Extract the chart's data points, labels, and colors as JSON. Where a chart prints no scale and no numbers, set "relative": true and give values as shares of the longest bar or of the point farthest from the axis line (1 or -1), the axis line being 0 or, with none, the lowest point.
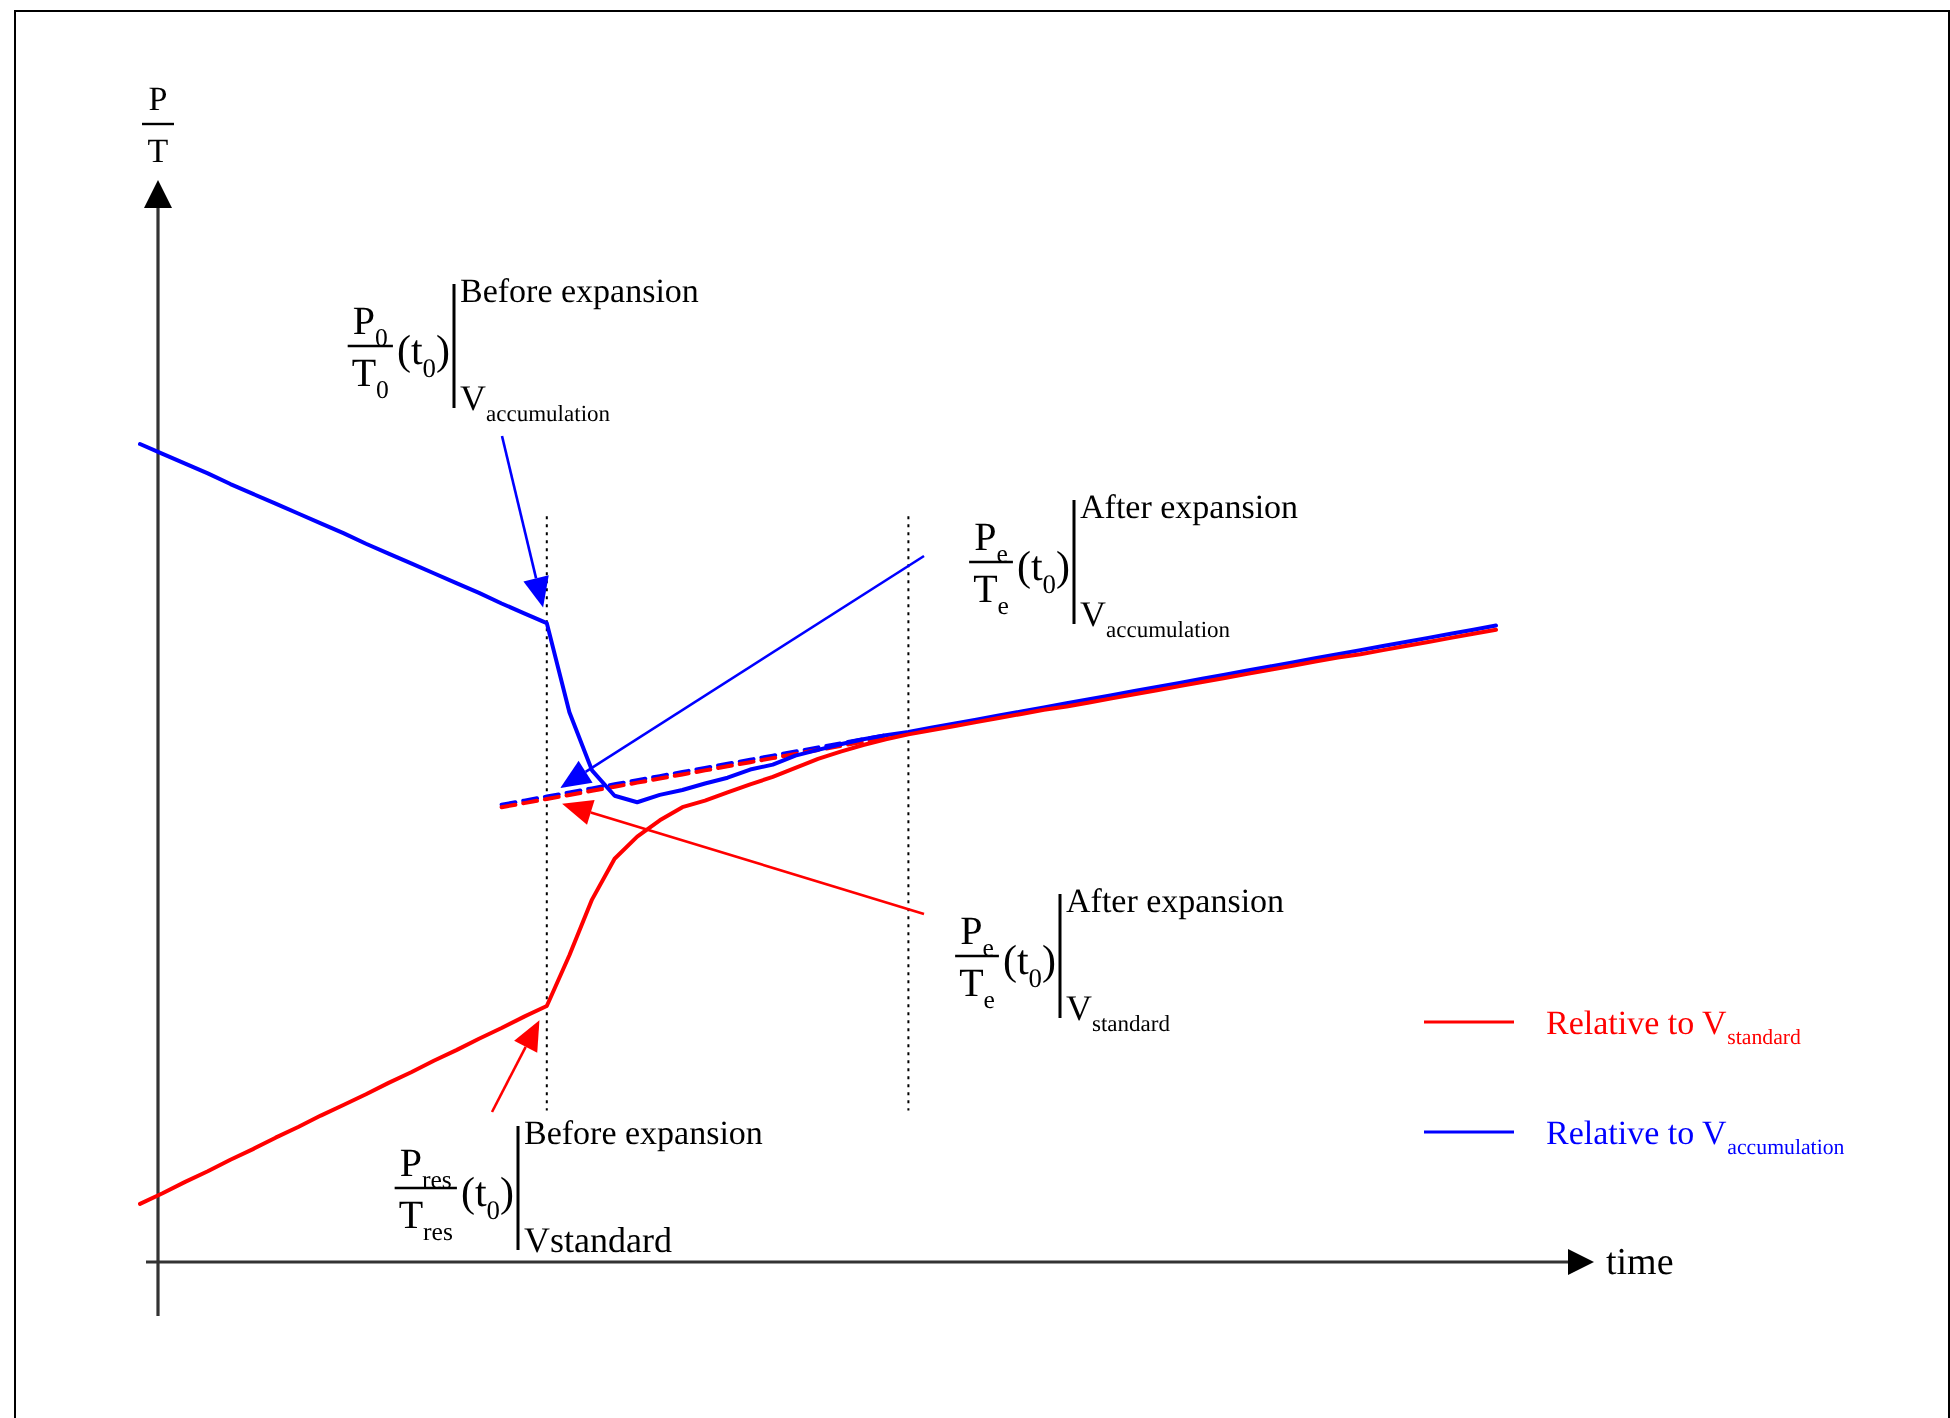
{
  "chart_data": {
    "type": "line",
    "relative": true,
    "xlabel": "time",
    "legend": "bottom right",
    "categories": [
      null,
      null,
      null,
      null,
      null,
      null,
      null,
      null,
      null,
      null,
      null,
      null,
      null,
      null,
      null,
      null,
      null,
      null,
      null,
      null,
      null,
      null,
      null,
      null,
      null,
      null,
      null,
      null,
      null,
      null,
      null,
      null,
      null,
      null,
      null,
      null,
      null,
      null,
      null,
      null,
      null,
      null,
      null,
      null,
      null,
      null,
      null,
      null,
      null,
      null,
      null,
      null,
      null,
      null,
      null,
      null,
      null,
      null,
      null,
      null,
      null
    ],
    "series": [
      {
        "name": "Relative to V$_{standard}$",
        "color": "#ff0000",
        "values": [
          0.071,
          0.084,
          0.098,
          0.111,
          0.125,
          0.138,
          0.152,
          0.165,
          0.179,
          0.192,
          0.205,
          0.219,
          0.232,
          0.246,
          0.259,
          0.273,
          0.286,
          0.3,
          0.313,
          0.375,
          0.443,
          0.493,
          0.52,
          0.54,
          0.556,
          0.564,
          0.574,
          0.584,
          0.593,
          0.604,
          0.615,
          0.624,
          0.632,
          0.639,
          0.645,
          0.65,
          0.655,
          0.66,
          0.665,
          0.67,
          0.675,
          0.679,
          0.684,
          0.689,
          0.694,
          0.699,
          0.704,
          0.709,
          0.714,
          0.719,
          0.724,
          0.729,
          0.734,
          0.739,
          0.743,
          0.748,
          0.753,
          0.758,
          0.763,
          0.768,
          0.773
        ]
      },
      {
        "name": "Relative to V$_{accumulation}$",
        "color": "#0000ff",
        "values": [
          1.0,
          0.988,
          0.976,
          0.964,
          0.951,
          0.939,
          0.927,
          0.915,
          0.903,
          0.891,
          0.878,
          0.866,
          0.854,
          0.842,
          0.83,
          0.818,
          0.805,
          0.793,
          0.781,
          0.672,
          0.601,
          0.57,
          0.562,
          0.571,
          0.577,
          0.585,
          0.592,
          0.602,
          0.608,
          0.619,
          0.626,
          0.633,
          0.639,
          0.644,
          0.648,
          0.653,
          0.658,
          0.663,
          0.668,
          0.673,
          0.678,
          0.683,
          0.688,
          0.693,
          0.698,
          0.703,
          0.708,
          0.713,
          0.718,
          0.723,
          0.728,
          0.733,
          0.738,
          0.743,
          0.748,
          0.753,
          0.758,
          0.763,
          0.768,
          0.773,
          0.778
        ]
      },
      {
        "color": "#ff0000",
        "line_style": "dashed",
        "values": [
          null,
          null,
          null,
          null,
          null,
          null,
          null,
          null,
          null,
          null,
          null,
          null,
          null,
          null,
          null,
          null,
          0.556,
          0.561,
          0.566,
          0.571,
          0.576,
          0.581,
          0.586,
          0.591,
          0.596,
          0.601,
          0.606,
          0.611,
          0.616,
          0.621,
          0.626,
          0.631,
          0.636,
          0.641,
          null,
          null,
          null,
          null,
          null,
          null,
          null,
          null,
          null,
          null,
          null,
          null,
          null,
          null,
          null,
          null,
          null,
          null,
          null,
          null,
          null,
          null,
          null,
          null,
          null,
          null,
          null
        ]
      },
      {
        "color": "#0000ff",
        "line_style": "dashed",
        "values": [
          null,
          null,
          null,
          null,
          null,
          null,
          null,
          null,
          null,
          null,
          null,
          null,
          null,
          null,
          null,
          null,
          0.559,
          0.564,
          0.569,
          0.574,
          0.579,
          0.584,
          0.589,
          0.594,
          0.599,
          0.604,
          0.609,
          0.614,
          0.619,
          0.624,
          0.629,
          0.634,
          0.639,
          0.644,
          null,
          null,
          null,
          null,
          null,
          null,
          null,
          null,
          null,
          null,
          null,
          null,
          null,
          null,
          null,
          null,
          null,
          null,
          null,
          null,
          null,
          null,
          null,
          null,
          null,
          null,
          null
        ]
      }
    ],
    "annotations": [
      "P\nT",
      "P$_{0}$\nT$_{0}$\n(t$_{0}$)\nBefore expansion\nV$_{accumulation}$",
      "P$_{e}$\nT$_{e}$\n(t$_{0}$)\nAfter expansion\nV$_{accumulation}$",
      "P$_{e}$\nT$_{e}$\n(t$_{0}$)\nAfter expansion\nV$_{standard}$",
      "P$_{res}$\nT$_{res}$\n(t$_{0}$)\nBefore expansion\nVstandard"
    ]
  }
}
